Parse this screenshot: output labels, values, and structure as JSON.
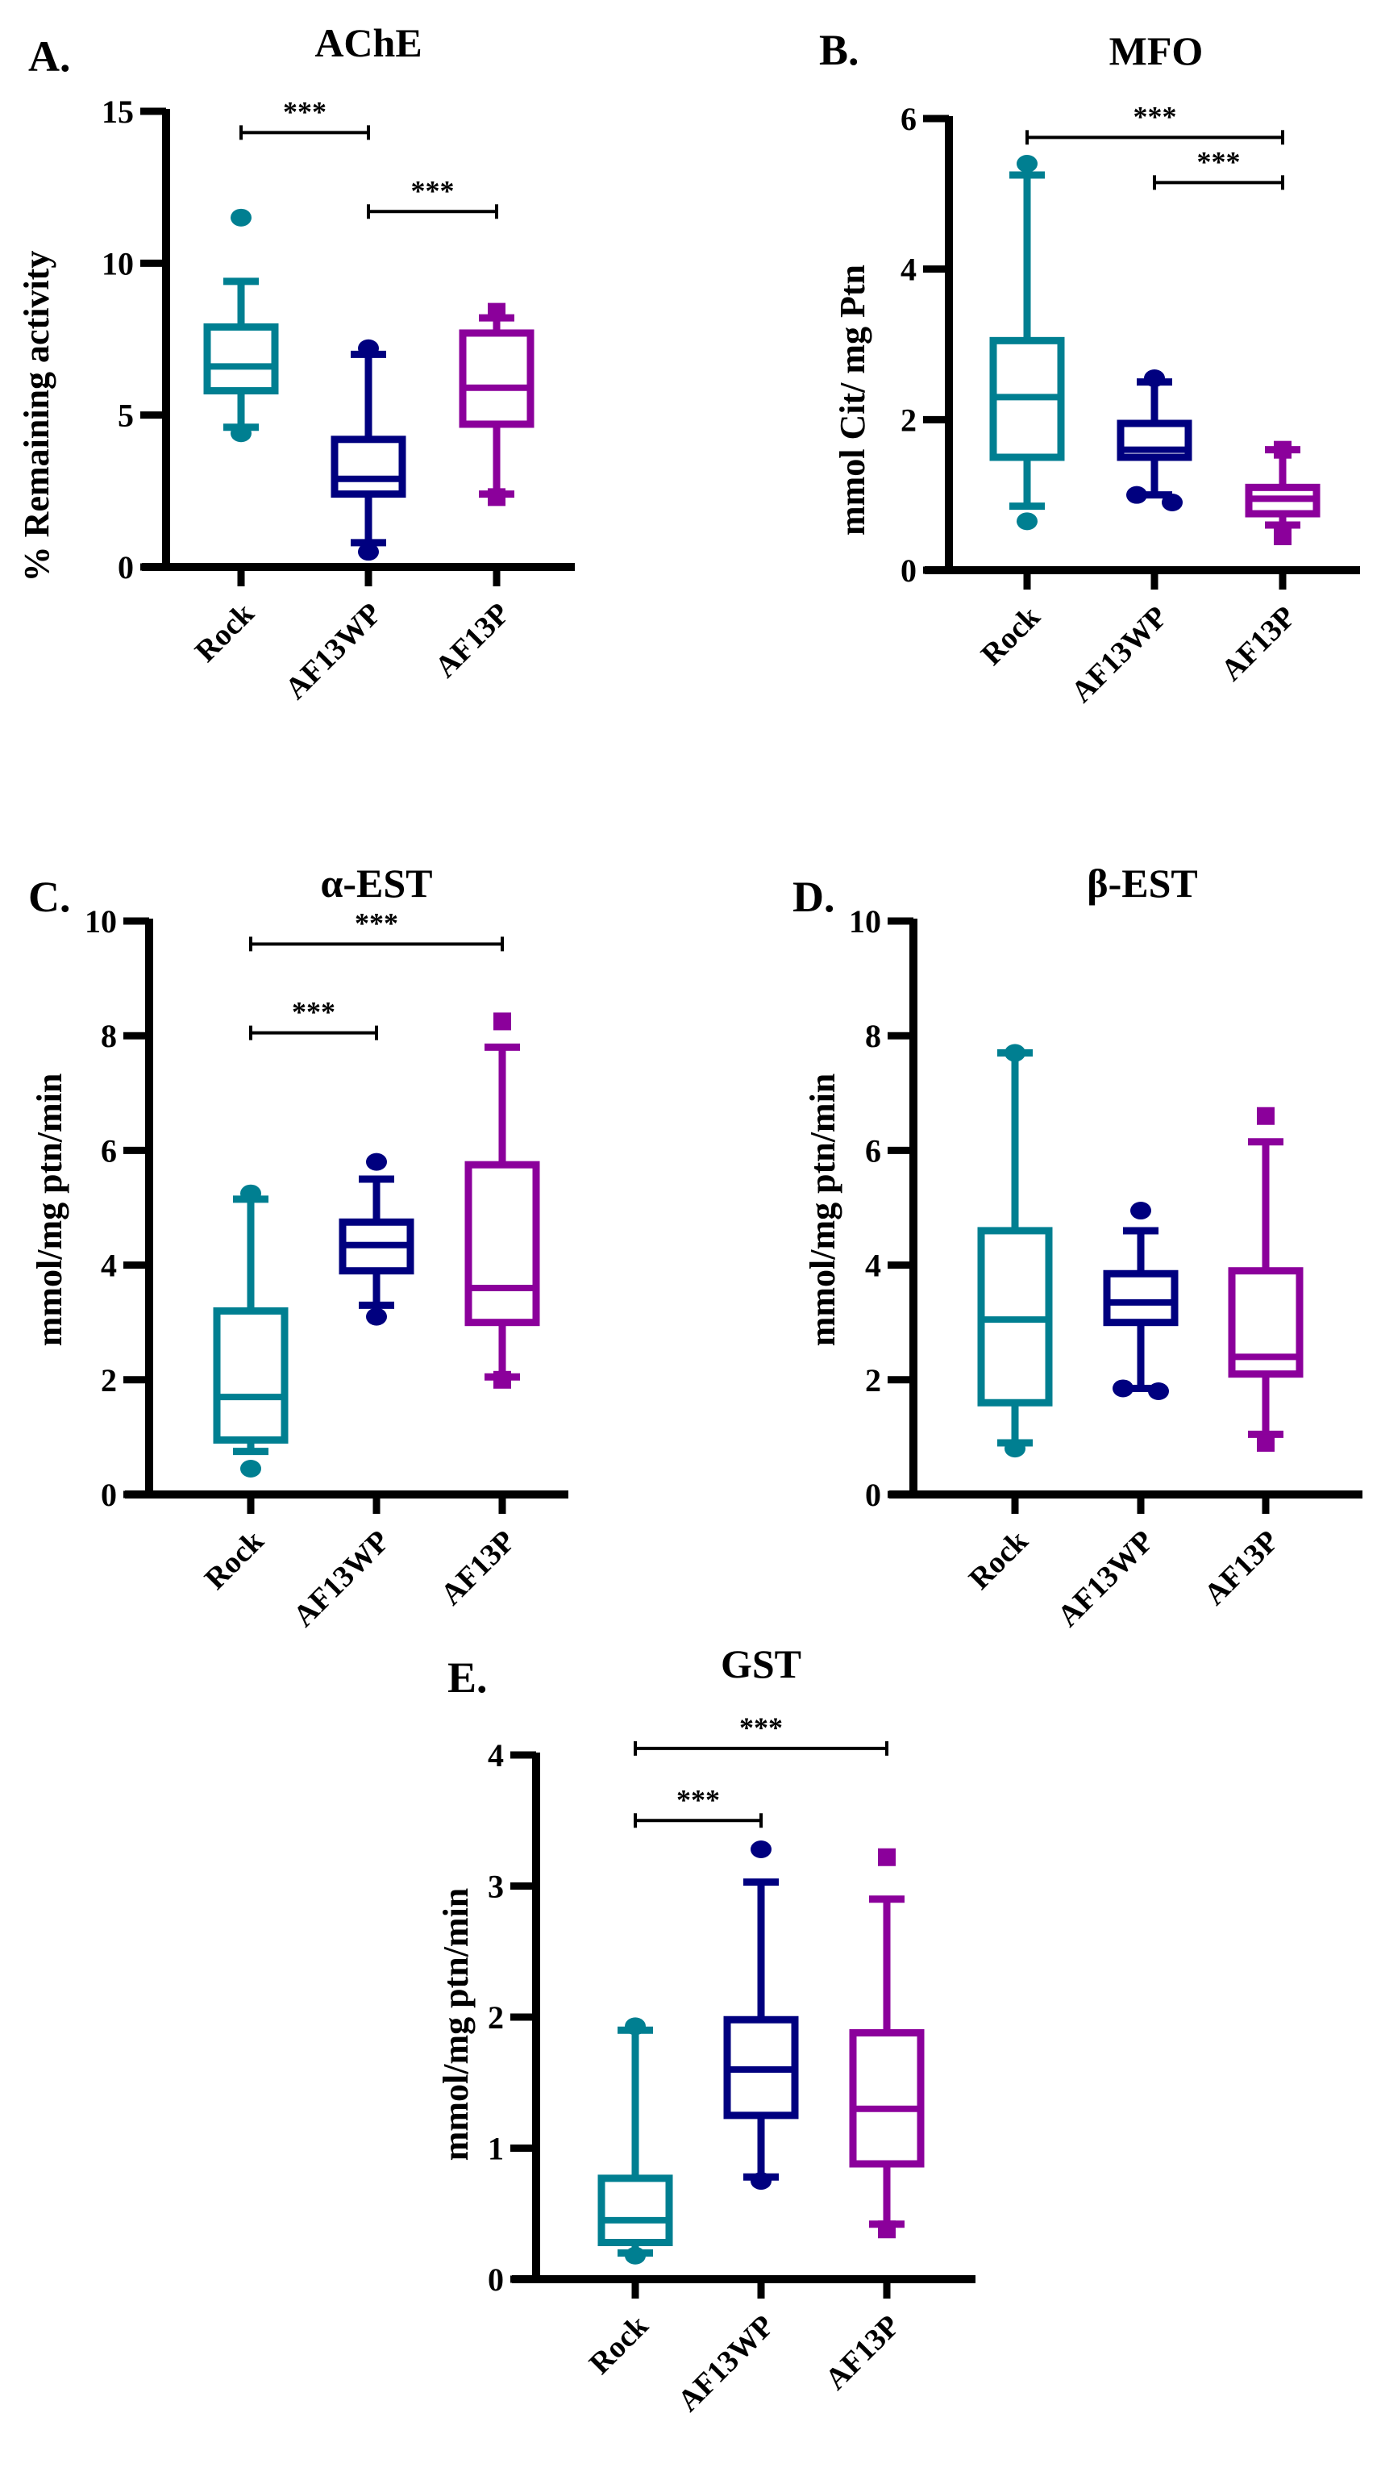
{
  "colors": {
    "Rock": "#007f91",
    "AF13WP": "#00007f",
    "AF13P": "#8b009b",
    "axis": "#000000"
  },
  "chart_data": [
    {
      "type": "box",
      "panel": "A.",
      "title": "AChE",
      "ylabel": "% Remaining activity",
      "categories": [
        "Rock",
        "AF13WP",
        "AF13P"
      ],
      "ylim": [
        0,
        15
      ],
      "yticks": [
        0,
        5,
        10,
        15
      ],
      "series": [
        {
          "name": "Rock",
          "whisker_low": 4.6,
          "q1": 5.8,
          "median": 6.6,
          "q3": 7.9,
          "whisker_high": 9.4,
          "outliers": [
            11.5,
            4.4
          ],
          "marker": "circle"
        },
        {
          "name": "AF13WP",
          "whisker_low": 0.8,
          "q1": 2.4,
          "median": 2.9,
          "q3": 4.2,
          "whisker_high": 7.0,
          "outliers": [
            7.2,
            0.5
          ],
          "marker": "circle"
        },
        {
          "name": "AF13P",
          "whisker_low": 2.4,
          "q1": 4.7,
          "median": 5.9,
          "q3": 7.7,
          "whisker_high": 8.2,
          "outliers": [
            8.4,
            2.3
          ],
          "marker": "square"
        }
      ],
      "significance": [
        {
          "from": "Rock",
          "to": "AF13WP",
          "y": 14.3,
          "label": "***"
        },
        {
          "from": "AF13WP",
          "to": "AF13P",
          "y": 11.7,
          "label": "***"
        }
      ]
    },
    {
      "type": "box",
      "panel": "B.",
      "title": "MFO",
      "ylabel": "mmol Cit/ mg Ptn",
      "categories": [
        "Rock",
        "AF13WP",
        "AF13P"
      ],
      "ylim": [
        0,
        6
      ],
      "yticks": [
        0,
        2,
        4,
        6
      ],
      "series": [
        {
          "name": "Rock",
          "whisker_low": 0.85,
          "q1": 1.5,
          "median": 2.3,
          "q3": 3.05,
          "whisker_high": 5.25,
          "outliers": [
            5.4,
            0.65
          ],
          "marker": "circle"
        },
        {
          "name": "AF13WP",
          "whisker_low": 1.0,
          "q1": 1.5,
          "median": 1.6,
          "q3": 1.95,
          "whisker_high": 2.5,
          "outliers": [
            2.55,
            1.0,
            0.9
          ],
          "marker": "circle"
        },
        {
          "name": "AF13P",
          "whisker_low": 0.6,
          "q1": 0.75,
          "median": 0.95,
          "q3": 1.1,
          "whisker_high": 1.6,
          "outliers": [
            1.6,
            0.45
          ],
          "marker": "square"
        }
      ],
      "significance": [
        {
          "from": "Rock",
          "to": "AF13P",
          "y": 5.75,
          "label": "***"
        },
        {
          "from": "AF13WP",
          "to": "AF13P",
          "y": 5.15,
          "label": "***"
        }
      ]
    },
    {
      "type": "box",
      "panel": "C.",
      "title": "α-EST",
      "ylabel": "mmol/mg ptn/min",
      "categories": [
        "Rock",
        "AF13WP",
        "AF13P"
      ],
      "ylim": [
        0,
        10
      ],
      "yticks": [
        0,
        2,
        4,
        6,
        8,
        10
      ],
      "series": [
        {
          "name": "Rock",
          "whisker_low": 0.75,
          "q1": 0.95,
          "median": 1.7,
          "q3": 3.2,
          "whisker_high": 5.15,
          "outliers": [
            5.25,
            0.45
          ],
          "marker": "circle"
        },
        {
          "name": "AF13WP",
          "whisker_low": 3.3,
          "q1": 3.9,
          "median": 4.35,
          "q3": 4.75,
          "whisker_high": 5.5,
          "outliers": [
            5.8,
            3.1
          ],
          "marker": "circle"
        },
        {
          "name": "AF13P",
          "whisker_low": 2.05,
          "q1": 3.0,
          "median": 3.6,
          "q3": 5.75,
          "whisker_high": 7.8,
          "outliers": [
            8.25,
            2.0
          ],
          "marker": "square"
        }
      ],
      "significance": [
        {
          "from": "Rock",
          "to": "AF13P",
          "y": 9.6,
          "label": "***"
        },
        {
          "from": "Rock",
          "to": "AF13WP",
          "y": 8.05,
          "label": "***"
        }
      ]
    },
    {
      "type": "box",
      "panel": "D.",
      "title": "β-EST",
      "ylabel": "mmol/mg ptn/min",
      "categories": [
        "Rock",
        "AF13WP",
        "AF13P"
      ],
      "ylim": [
        0,
        10
      ],
      "yticks": [
        0,
        2,
        4,
        6,
        8,
        10
      ],
      "series": [
        {
          "name": "Rock",
          "whisker_low": 0.9,
          "q1": 1.6,
          "median": 3.05,
          "q3": 4.6,
          "whisker_high": 7.7,
          "outliers": [
            7.7,
            0.8
          ],
          "marker": "circle"
        },
        {
          "name": "AF13WP",
          "whisker_low": 1.85,
          "q1": 3.0,
          "median": 3.35,
          "q3": 3.85,
          "whisker_high": 4.6,
          "outliers": [
            4.95,
            1.85,
            1.8
          ],
          "marker": "circle"
        },
        {
          "name": "AF13P",
          "whisker_low": 1.05,
          "q1": 2.1,
          "median": 2.4,
          "q3": 3.9,
          "whisker_high": 6.15,
          "outliers": [
            6.6,
            0.9
          ],
          "marker": "square"
        }
      ],
      "significance": []
    },
    {
      "type": "box",
      "panel": "E.",
      "title": "GST",
      "ylabel": "mmol/mg ptn/min",
      "categories": [
        "Rock",
        "AF13WP",
        "AF13P"
      ],
      "ylim": [
        0,
        4
      ],
      "yticks": [
        0,
        1,
        2,
        3,
        4
      ],
      "series": [
        {
          "name": "Rock",
          "whisker_low": 0.2,
          "q1": 0.28,
          "median": 0.45,
          "q3": 0.77,
          "whisker_high": 1.9,
          "outliers": [
            1.93,
            0.18
          ],
          "marker": "circle"
        },
        {
          "name": "AF13WP",
          "whisker_low": 0.78,
          "q1": 1.25,
          "median": 1.6,
          "q3": 1.98,
          "whisker_high": 3.03,
          "outliers": [
            3.28,
            0.75
          ],
          "marker": "circle"
        },
        {
          "name": "AF13P",
          "whisker_low": 0.42,
          "q1": 0.88,
          "median": 1.3,
          "q3": 1.88,
          "whisker_high": 2.9,
          "outliers": [
            3.22,
            0.38
          ],
          "marker": "square"
        }
      ],
      "significance": [
        {
          "from": "Rock",
          "to": "AF13P",
          "y": 4.05,
          "label": "***"
        },
        {
          "from": "Rock",
          "to": "AF13WP",
          "y": 3.5,
          "label": "***"
        }
      ]
    }
  ]
}
